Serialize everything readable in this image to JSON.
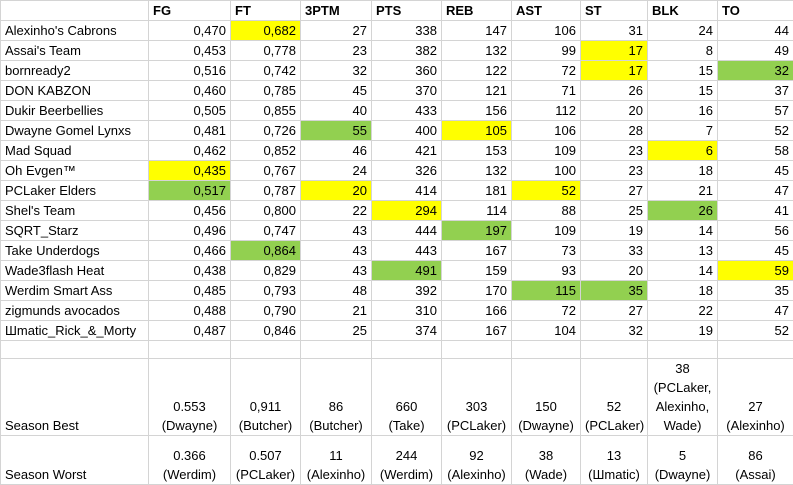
{
  "headers": [
    "",
    "FG",
    "FT",
    "3PTM",
    "PTS",
    "REB",
    "AST",
    "ST",
    "BLK",
    "TO"
  ],
  "colors": {
    "yellow": "#ffff00",
    "green": "#92d050"
  },
  "rows": [
    {
      "cells": [
        "Alexinho's Cabrons",
        "0,470",
        "0,682",
        "27",
        "338",
        "147",
        "106",
        "31",
        "24",
        "44"
      ],
      "hl": {
        "2": "yellow"
      }
    },
    {
      "cells": [
        "Assai's Team",
        "0,453",
        "0,778",
        "23",
        "382",
        "132",
        "99",
        "17",
        "8",
        "49"
      ],
      "hl": {
        "7": "yellow"
      }
    },
    {
      "cells": [
        "bornready2",
        "0,516",
        "0,742",
        "32",
        "360",
        "122",
        "72",
        "17",
        "15",
        "32"
      ],
      "hl": {
        "7": "yellow",
        "9": "green"
      }
    },
    {
      "cells": [
        "DON KABZON",
        "0,460",
        "0,785",
        "45",
        "370",
        "121",
        "71",
        "26",
        "15",
        "37"
      ],
      "hl": {}
    },
    {
      "cells": [
        "Dukir Beerbellies",
        "0,505",
        "0,855",
        "40",
        "433",
        "156",
        "112",
        "20",
        "16",
        "57"
      ],
      "hl": {}
    },
    {
      "cells": [
        "Dwayne Gomel Lynxs",
        "0,481",
        "0,726",
        "55",
        "400",
        "105",
        "106",
        "28",
        "7",
        "52"
      ],
      "hl": {
        "3": "green",
        "5": "yellow"
      }
    },
    {
      "cells": [
        "Mad Squad",
        "0,462",
        "0,852",
        "46",
        "421",
        "153",
        "109",
        "23",
        "6",
        "58"
      ],
      "hl": {
        "8": "yellow"
      }
    },
    {
      "cells": [
        "Oh Evgen™",
        "0,435",
        "0,767",
        "24",
        "326",
        "132",
        "100",
        "23",
        "18",
        "45"
      ],
      "hl": {
        "1": "yellow"
      }
    },
    {
      "cells": [
        "PCLaker Elders",
        "0,517",
        "0,787",
        "20",
        "414",
        "181",
        "52",
        "27",
        "21",
        "47"
      ],
      "hl": {
        "1": "green",
        "3": "yellow",
        "6": "yellow"
      }
    },
    {
      "cells": [
        "Shel's Team",
        "0,456",
        "0,800",
        "22",
        "294",
        "114",
        "88",
        "25",
        "26",
        "41"
      ],
      "hl": {
        "4": "yellow",
        "8": "green"
      }
    },
    {
      "cells": [
        "SQRT_Starz",
        "0,496",
        "0,747",
        "43",
        "444",
        "197",
        "109",
        "19",
        "14",
        "56"
      ],
      "hl": {
        "5": "green"
      }
    },
    {
      "cells": [
        "Take Underdogs",
        "0,466",
        "0,864",
        "43",
        "443",
        "167",
        "73",
        "33",
        "13",
        "45"
      ],
      "hl": {
        "2": "green"
      }
    },
    {
      "cells": [
        "Wade3flash Heat",
        "0,438",
        "0,829",
        "43",
        "491",
        "159",
        "93",
        "20",
        "14",
        "59"
      ],
      "hl": {
        "4": "green",
        "9": "yellow"
      }
    },
    {
      "cells": [
        "Werdim Smart Ass",
        "0,485",
        "0,793",
        "48",
        "392",
        "170",
        "115",
        "35",
        "18",
        "35"
      ],
      "hl": {
        "6": "green",
        "7": "green"
      }
    },
    {
      "cells": [
        "zigmunds avocados",
        "0,488",
        "0,790",
        "21",
        "310",
        "166",
        "72",
        "27",
        "22",
        "47"
      ],
      "hl": {}
    },
    {
      "cells": [
        "Шmatic_Rick_&_Morty",
        "0,487",
        "0,846",
        "25",
        "374",
        "167",
        "104",
        "32",
        "19",
        "52"
      ],
      "hl": {}
    }
  ],
  "season_best": {
    "label": "Season Best",
    "cells": [
      [
        "0.553",
        "(Dwayne)"
      ],
      [
        "0,911",
        "(Butcher)"
      ],
      [
        "86",
        "(Butcher)"
      ],
      [
        "660",
        "(Take)"
      ],
      [
        "303",
        "(PCLaker)"
      ],
      [
        "150",
        "(Dwayne)"
      ],
      [
        "52",
        "(PCLaker)"
      ],
      [
        "38",
        "(PCLaker,",
        "Alexinho,",
        "Wade)"
      ],
      [
        "27",
        "(Alexinho)"
      ]
    ]
  },
  "season_worst": {
    "label": "Season Worst",
    "cells": [
      [
        "0.366",
        "(Werdim)"
      ],
      [
        "0.507",
        "(PCLaker)"
      ],
      [
        "11",
        "(Alexinho)"
      ],
      [
        "244",
        "(Werdim)"
      ],
      [
        "92",
        "(Alexinho)"
      ],
      [
        "38",
        "(Wade)"
      ],
      [
        "13",
        "(Шmatic)"
      ],
      [
        "5",
        "(Dwayne)"
      ],
      [
        "86",
        "(Assai)"
      ]
    ]
  }
}
